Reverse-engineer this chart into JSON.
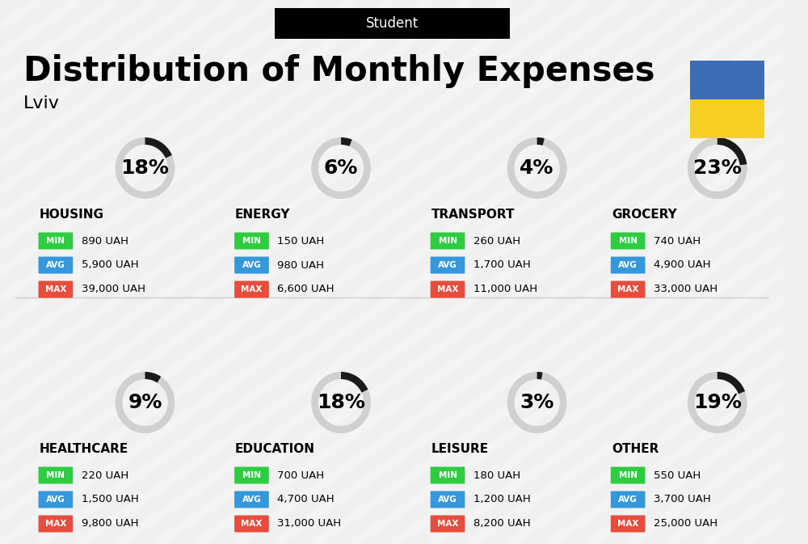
{
  "title": "Distribution of Monthly Expenses",
  "subtitle": "Student",
  "city": "Lviv",
  "bg_color": "#f0f0f0",
  "ukraine_colors": [
    "#3d6eb5",
    "#f5d020"
  ],
  "categories": [
    {
      "name": "HOUSING",
      "pct": 18,
      "min_val": "890 UAH",
      "avg_val": "5,900 UAH",
      "max_val": "39,000 UAH",
      "row": 0,
      "col": 0
    },
    {
      "name": "ENERGY",
      "pct": 6,
      "min_val": "150 UAH",
      "avg_val": "980 UAH",
      "max_val": "6,600 UAH",
      "row": 0,
      "col": 1
    },
    {
      "name": "TRANSPORT",
      "pct": 4,
      "min_val": "260 UAH",
      "avg_val": "1,700 UAH",
      "max_val": "11,000 UAH",
      "row": 0,
      "col": 2
    },
    {
      "name": "GROCERY",
      "pct": 23,
      "min_val": "740 UAH",
      "avg_val": "4,900 UAH",
      "max_val": "33,000 UAH",
      "row": 0,
      "col": 3
    },
    {
      "name": "HEALTHCARE",
      "pct": 9,
      "min_val": "220 UAH",
      "avg_val": "1,500 UAH",
      "max_val": "9,800 UAH",
      "row": 1,
      "col": 0
    },
    {
      "name": "EDUCATION",
      "pct": 18,
      "min_val": "700 UAH",
      "avg_val": "4,700 UAH",
      "max_val": "31,000 UAH",
      "row": 1,
      "col": 1
    },
    {
      "name": "LEISURE",
      "pct": 3,
      "min_val": "180 UAH",
      "avg_val": "1,200 UAH",
      "max_val": "8,200 UAH",
      "row": 1,
      "col": 2
    },
    {
      "name": "OTHER",
      "pct": 19,
      "min_val": "550 UAH",
      "avg_val": "3,700 UAH",
      "max_val": "25,000 UAH",
      "row": 1,
      "col": 3
    }
  ],
  "min_color": "#2ecc40",
  "avg_color": "#3498db",
  "max_color": "#e74c3c",
  "label_color": "#ffffff",
  "ring_color_active": "#1a1a1a",
  "ring_color_inactive": "#d0d0d0",
  "pct_fontsize": 18,
  "category_fontsize": 11,
  "value_fontsize": 10,
  "title_fontsize": 30,
  "subtitle_fontsize": 12
}
